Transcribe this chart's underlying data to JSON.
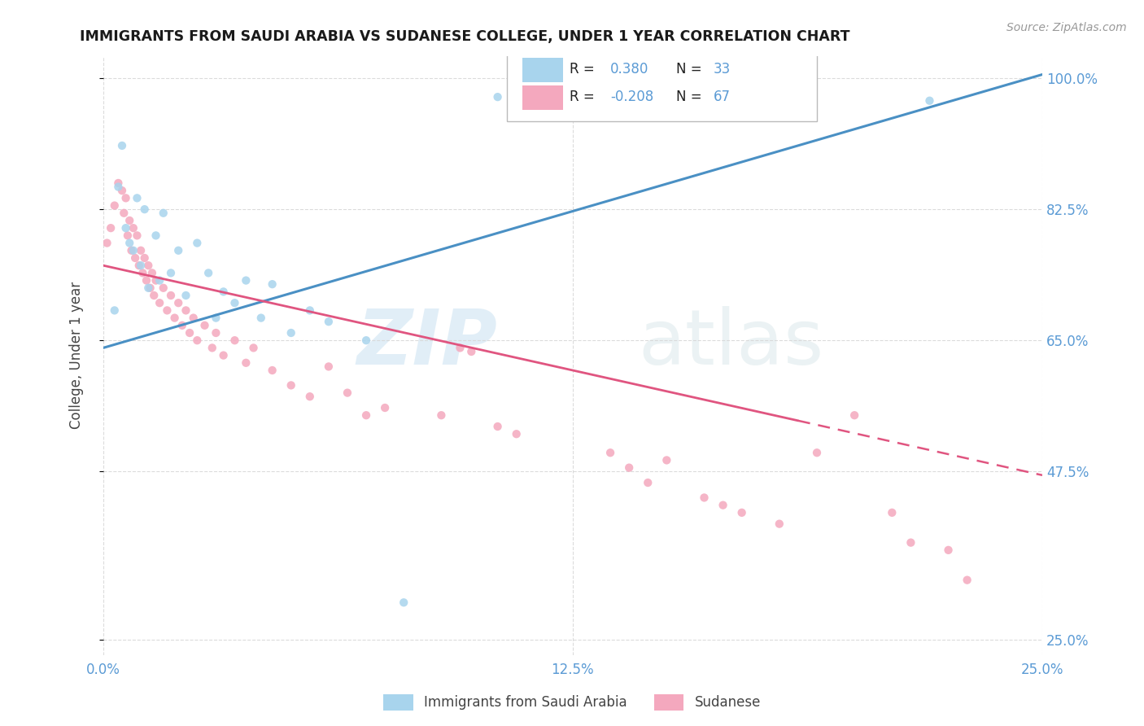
{
  "title": "IMMIGRANTS FROM SAUDI ARABIA VS SUDANESE COLLEGE, UNDER 1 YEAR CORRELATION CHART",
  "source_text": "Source: ZipAtlas.com",
  "ylabel": "College, Under 1 year",
  "xlim": [
    0.0,
    25.0
  ],
  "ylim": [
    23.0,
    103.0
  ],
  "label1": "Immigrants from Saudi Arabia",
  "label2": "Sudanese",
  "color1": "#a8d4ed",
  "color2": "#f4a8be",
  "trend_color1": "#4a90c4",
  "trend_color2": "#e05580",
  "background_color": "#ffffff",
  "title_color": "#1a1a1a",
  "axis_tick_color": "#5b9bd5",
  "grid_color": "#d8d8d8",
  "watermark_zip": "ZIP",
  "watermark_atlas": "atlas",
  "xtick_vals": [
    0.0,
    12.5,
    25.0
  ],
  "xtick_labels": [
    "0.0%",
    "12.5%",
    "25.0%"
  ],
  "ytick_vals": [
    25.0,
    47.5,
    65.0,
    82.5,
    100.0
  ],
  "ytick_labels": [
    "25.0%",
    "47.5%",
    "65.0%",
    "82.5%",
    "100.0%"
  ],
  "trend1_x0": 0.0,
  "trend1_y0": 64.0,
  "trend1_x1": 25.0,
  "trend1_y1": 100.5,
  "trend2_x0": 0.0,
  "trend2_y0": 75.0,
  "trend2_x1": 25.0,
  "trend2_y1": 47.0,
  "trend2_dash_start": 18.5,
  "saudi_x": [
    0.3,
    0.4,
    0.5,
    0.6,
    0.7,
    0.8,
    0.9,
    1.0,
    1.1,
    1.2,
    1.4,
    1.5,
    1.6,
    1.8,
    2.0,
    2.2,
    2.5,
    2.8,
    3.0,
    3.2,
    3.5,
    3.8,
    4.2,
    4.5,
    5.0,
    5.5,
    6.0,
    7.0,
    8.0,
    10.5,
    22.0
  ],
  "saudi_y": [
    69.0,
    85.5,
    91.0,
    80.0,
    78.0,
    77.0,
    84.0,
    75.0,
    82.5,
    72.0,
    79.0,
    73.0,
    82.0,
    74.0,
    77.0,
    71.0,
    78.0,
    74.0,
    68.0,
    71.5,
    70.0,
    73.0,
    68.0,
    72.5,
    66.0,
    69.0,
    67.5,
    65.0,
    30.0,
    97.5,
    97.0
  ],
  "sudanese_x": [
    0.1,
    0.2,
    0.3,
    0.4,
    0.5,
    0.55,
    0.6,
    0.65,
    0.7,
    0.75,
    0.8,
    0.85,
    0.9,
    0.95,
    1.0,
    1.05,
    1.1,
    1.15,
    1.2,
    1.25,
    1.3,
    1.35,
    1.4,
    1.5,
    1.6,
    1.7,
    1.8,
    1.9,
    2.0,
    2.1,
    2.2,
    2.3,
    2.4,
    2.5,
    2.7,
    2.9,
    3.0,
    3.2,
    3.5,
    3.8,
    4.0,
    4.5,
    5.0,
    5.5,
    6.0,
    6.5,
    7.5,
    9.0,
    9.5,
    11.0,
    13.5,
    14.0,
    15.0,
    16.0,
    17.0,
    18.0,
    19.0,
    21.0,
    21.5,
    22.5,
    23.0,
    7.0,
    9.8,
    10.5,
    14.5,
    16.5,
    20.0
  ],
  "sudanese_y": [
    78.0,
    80.0,
    83.0,
    86.0,
    85.0,
    82.0,
    84.0,
    79.0,
    81.0,
    77.0,
    80.0,
    76.0,
    79.0,
    75.0,
    77.0,
    74.0,
    76.0,
    73.0,
    75.0,
    72.0,
    74.0,
    71.0,
    73.0,
    70.0,
    72.0,
    69.0,
    71.0,
    68.0,
    70.0,
    67.0,
    69.0,
    66.0,
    68.0,
    65.0,
    67.0,
    64.0,
    66.0,
    63.0,
    65.0,
    62.0,
    64.0,
    61.0,
    59.0,
    57.5,
    61.5,
    58.0,
    56.0,
    55.0,
    64.0,
    52.5,
    50.0,
    48.0,
    49.0,
    44.0,
    42.0,
    40.5,
    50.0,
    42.0,
    38.0,
    37.0,
    33.0,
    55.0,
    63.5,
    53.5,
    46.0,
    43.0,
    55.0
  ]
}
